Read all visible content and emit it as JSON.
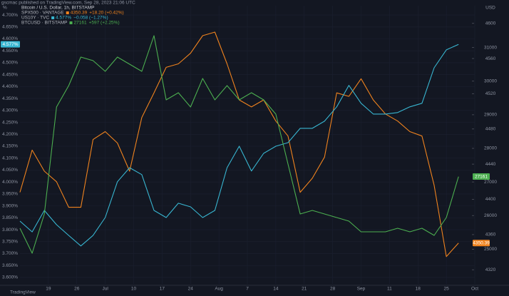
{
  "header": "gscmac published on TradingView.com, Sep 28, 2023 21:06 UTC",
  "footer": "TradingView",
  "chart_data": {
    "type": "line",
    "title": "Bitcoin / U.S. Dollar, 1h, BITSTAMP",
    "y_axis_label": "%",
    "y2_axis_label": "USD",
    "grid": true,
    "x": [
      0,
      3,
      6,
      9,
      12,
      15,
      18,
      21,
      24,
      27,
      30,
      33,
      36,
      39,
      42,
      45,
      48,
      51,
      54,
      57,
      60,
      63,
      66,
      69,
      72,
      75,
      78,
      81,
      84,
      87,
      90,
      93,
      96,
      99,
      102,
      105,
      108
    ],
    "xlim": [
      0,
      112
    ],
    "xticks": [
      {
        "value": 7,
        "label": "19"
      },
      {
        "value": 14,
        "label": "26"
      },
      {
        "value": 21,
        "label": "Jul"
      },
      {
        "value": 28,
        "label": "10"
      },
      {
        "value": 35,
        "label": "17"
      },
      {
        "value": 42,
        "label": "24"
      },
      {
        "value": 49,
        "label": "Aug"
      },
      {
        "value": 56,
        "label": "7"
      },
      {
        "value": 63,
        "label": "14"
      },
      {
        "value": 70,
        "label": "21"
      },
      {
        "value": 77,
        "label": "28"
      },
      {
        "value": 84,
        "label": "Sep"
      },
      {
        "value": 91,
        "label": "11"
      },
      {
        "value": 98,
        "label": "18"
      },
      {
        "value": 105,
        "label": "25"
      },
      {
        "value": 112,
        "label": "Oct"
      }
    ],
    "ylim": [
      3.573,
      4.739
    ],
    "yticks": [
      {
        "value": 3.6,
        "label": "3.600%"
      },
      {
        "value": 3.65,
        "label": "3.650%"
      },
      {
        "value": 3.7,
        "label": "3.700%"
      },
      {
        "value": 3.75,
        "label": "3.750%"
      },
      {
        "value": 3.8,
        "label": "3.800%"
      },
      {
        "value": 3.85,
        "label": "3.850%"
      },
      {
        "value": 3.9,
        "label": "3.900%"
      },
      {
        "value": 3.95,
        "label": "3.950%"
      },
      {
        "value": 4.0,
        "label": "4.000%"
      },
      {
        "value": 4.05,
        "label": "4.050%"
      },
      {
        "value": 4.1,
        "label": "4.100%"
      },
      {
        "value": 4.15,
        "label": "4.150%"
      },
      {
        "value": 4.2,
        "label": "4.200%"
      },
      {
        "value": 4.25,
        "label": "4.250%"
      },
      {
        "value": 4.3,
        "label": "4.300%"
      },
      {
        "value": 4.35,
        "label": "4.350%"
      },
      {
        "value": 4.4,
        "label": "4.400%"
      },
      {
        "value": 4.45,
        "label": "4.450%"
      },
      {
        "value": 4.5,
        "label": "4.500%"
      },
      {
        "value": 4.55,
        "label": "4.550%"
      },
      {
        "value": 4.6,
        "label": "4.600%"
      },
      {
        "value": 4.65,
        "label": "4.650%"
      },
      {
        "value": 4.7,
        "label": "4.700%"
      }
    ],
    "y2lim": [
      23970,
      32242
    ],
    "y2ticks": [
      25000,
      26000,
      27000,
      28000,
      29000,
      30000,
      31000
    ],
    "y3lim": [
      4304,
      4620
    ],
    "y3ticks": [
      4320,
      4360,
      4400,
      4440,
      4480,
      4520,
      4560,
      4600
    ],
    "series": [
      {
        "name": "SPX500 · VANTAGE",
        "color": "#f0831e",
        "axis": "y3",
        "quote": "4350.39",
        "change": "+18.20 (+0.42%)",
        "values": [
          4408,
          4456,
          4432,
          4420,
          4391,
          4391,
          4468,
          4477,
          4464,
          4432,
          4493,
          4521,
          4550,
          4554,
          4566,
          4586,
          4590,
          4554,
          4513,
          4505,
          4513,
          4489,
          4472,
          4408,
          4424,
          4448,
          4521,
          4517,
          4537,
          4513,
          4497,
          4489,
          4477,
          4472,
          4416,
          4335,
          4350.39
        ]
      },
      {
        "name": "US10Y · TVC",
        "color": "#38b6d1",
        "axis": "y",
        "quote": "4.577%",
        "change": "−0.058 (−1.27%)",
        "values": [
          3.836,
          3.791,
          3.881,
          3.821,
          3.776,
          3.732,
          3.776,
          3.851,
          4.001,
          4.06,
          4.031,
          3.881,
          3.851,
          3.911,
          3.896,
          3.851,
          3.881,
          4.06,
          4.15,
          4.046,
          4.12,
          4.15,
          4.165,
          4.225,
          4.225,
          4.255,
          4.315,
          4.405,
          4.33,
          4.285,
          4.285,
          4.291,
          4.315,
          4.33,
          4.479,
          4.554,
          4.577
        ]
      },
      {
        "name": "BTCUSD · BITSTAMP",
        "color": "#4caf50",
        "axis": "y2",
        "quote": "27161",
        "change": "+597 (+2.25%)",
        "values": [
          25625,
          24882,
          26049,
          29230,
          29867,
          30715,
          30609,
          30291,
          30715,
          30503,
          30291,
          31352,
          29443,
          29655,
          29230,
          30079,
          29443,
          29867,
          29443,
          29655,
          29443,
          29018,
          27534,
          26049,
          26155,
          26049,
          25943,
          25837,
          25519,
          25519,
          25519,
          25625,
          25519,
          25625,
          25413,
          25943,
          27161
        ]
      }
    ]
  }
}
